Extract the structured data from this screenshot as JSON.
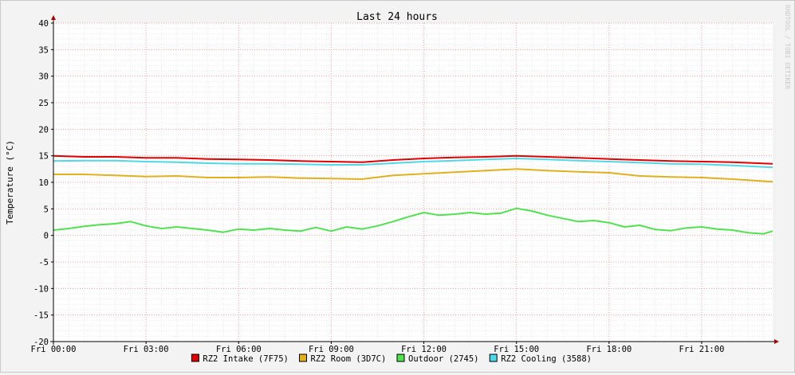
{
  "chart_data": {
    "type": "line",
    "title": "Last 24 hours",
    "ylabel": "Temperature (°C)",
    "xlabel": "",
    "watermark": "RRDTOOL / TOBI OETIKER",
    "ylim": [
      -20,
      40
    ],
    "yticks": [
      40,
      35,
      30,
      25,
      20,
      15,
      10,
      5,
      0,
      -5,
      -10,
      -15,
      -20
    ],
    "xlim": [
      0,
      23.3
    ],
    "xticks": [
      {
        "t": 0,
        "label": "Fri 00:00"
      },
      {
        "t": 3,
        "label": "Fri 03:00"
      },
      {
        "t": 6,
        "label": "Fri 06:00"
      },
      {
        "t": 9,
        "label": "Fri 09:00"
      },
      {
        "t": 12,
        "label": "Fri 12:00"
      },
      {
        "t": 15,
        "label": "Fri 15:00"
      },
      {
        "t": 18,
        "label": "Fri 18:00"
      },
      {
        "t": 21,
        "label": "Fri 21:00"
      }
    ],
    "grid": true,
    "legend_position": "bottom",
    "series": [
      {
        "name": "RZ2 Intake (7F75)",
        "color": "#e00000",
        "x": [
          0,
          1,
          2,
          3,
          4,
          5,
          6,
          7,
          8,
          9,
          10,
          11,
          12,
          13,
          14,
          15,
          16,
          17,
          18,
          19,
          20,
          21,
          22,
          23.3
        ],
        "y": [
          15.0,
          14.8,
          14.8,
          14.6,
          14.6,
          14.4,
          14.3,
          14.2,
          14.0,
          13.9,
          13.8,
          14.2,
          14.5,
          14.7,
          14.8,
          15.0,
          14.8,
          14.6,
          14.4,
          14.2,
          14.0,
          13.9,
          13.8,
          13.5
        ]
      },
      {
        "name": "RZ2 Room (3D7C)",
        "color": "#e0b020",
        "x": [
          0,
          1,
          2,
          3,
          4,
          5,
          6,
          7,
          8,
          9,
          10,
          11,
          12,
          13,
          14,
          15,
          16,
          17,
          18,
          19,
          20,
          21,
          22,
          23.3
        ],
        "y": [
          11.5,
          11.5,
          11.3,
          11.1,
          11.2,
          10.9,
          10.9,
          11.0,
          10.8,
          10.7,
          10.6,
          11.3,
          11.6,
          11.9,
          12.2,
          12.5,
          12.2,
          12.0,
          11.8,
          11.2,
          11.0,
          10.9,
          10.6,
          10.1
        ]
      },
      {
        "name": "Outdoor (2745)",
        "color": "#50e050",
        "x": [
          0,
          0.5,
          1,
          1.5,
          2,
          2.5,
          3,
          3.5,
          4,
          4.5,
          5,
          5.5,
          6,
          6.5,
          7,
          7.5,
          8,
          8.5,
          9,
          9.5,
          10,
          10.5,
          11,
          11.5,
          12,
          12.5,
          13,
          13.5,
          14,
          14.5,
          15,
          15.5,
          16,
          16.5,
          17,
          17.5,
          18,
          18.5,
          19,
          19.5,
          20,
          20.5,
          21,
          21.5,
          22,
          22.5,
          23,
          23.3
        ],
        "y": [
          1.0,
          1.3,
          1.7,
          2.0,
          2.2,
          2.6,
          1.8,
          1.3,
          1.6,
          1.3,
          1.0,
          0.6,
          1.2,
          1.0,
          1.3,
          1.0,
          0.8,
          1.5,
          0.8,
          1.6,
          1.2,
          1.8,
          2.6,
          3.5,
          4.3,
          3.8,
          4.0,
          4.3,
          4.0,
          4.2,
          5.1,
          4.6,
          3.8,
          3.2,
          2.6,
          2.8,
          2.4,
          1.6,
          1.9,
          1.1,
          0.9,
          1.4,
          1.6,
          1.2,
          1.0,
          0.5,
          0.3,
          0.8
        ]
      },
      {
        "name": "RZ2 Cooling (3588)",
        "color": "#50d8e8",
        "x": [
          0,
          1,
          2,
          3,
          4,
          5,
          6,
          7,
          8,
          9,
          10,
          11,
          12,
          13,
          14,
          15,
          16,
          17,
          18,
          19,
          20,
          21,
          22,
          23.3
        ],
        "y": [
          14.0,
          14.1,
          14.1,
          13.9,
          13.8,
          13.6,
          13.5,
          13.5,
          13.4,
          13.3,
          13.3,
          13.6,
          13.9,
          14.1,
          14.3,
          14.5,
          14.3,
          14.1,
          13.9,
          13.7,
          13.5,
          13.4,
          13.2,
          12.8
        ]
      }
    ]
  }
}
